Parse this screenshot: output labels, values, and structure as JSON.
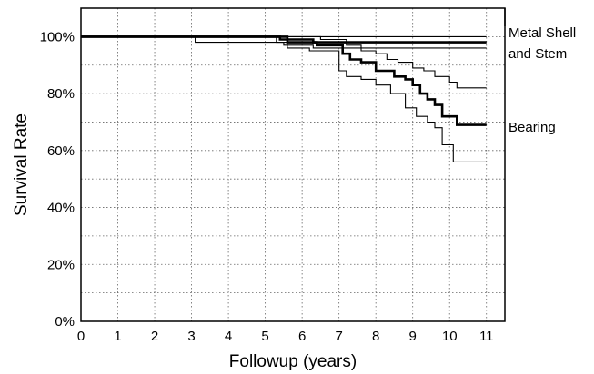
{
  "chart_data": {
    "type": "line",
    "title": "",
    "xlabel": "Followup (years)",
    "ylabel": "Survival Rate",
    "xlim": [
      0,
      11.5
    ],
    "ylim": [
      0,
      110
    ],
    "grid": "dotted",
    "x_ticks": [
      "0",
      "1",
      "2",
      "3",
      "4",
      "5",
      "6",
      "7",
      "8",
      "9",
      "10",
      "11"
    ],
    "y_ticks": [
      {
        "value": 0,
        "label": "0%"
      },
      {
        "value": 20,
        "label": "20%"
      },
      {
        "value": 40,
        "label": "40%"
      },
      {
        "value": 60,
        "label": "60%"
      },
      {
        "value": 80,
        "label": "80%"
      },
      {
        "value": 100,
        "label": "100%"
      }
    ],
    "annotations": [
      "Metal Shell",
      "and Stem",
      "Bearing"
    ],
    "series": [
      {
        "name": "Metal Shell and Stem",
        "role": "estimate",
        "x": [
          0,
          5.6,
          5.6,
          6.3,
          6.3,
          11
        ],
        "y": [
          100,
          100,
          99,
          99,
          98,
          98
        ]
      },
      {
        "role": "upper-ci",
        "x": [
          0,
          11
        ],
        "y": [
          100,
          100
        ]
      },
      {
        "role": "lower-ci",
        "x": [
          0,
          3.1,
          3.1,
          5.5,
          5.5,
          6.3,
          6.3,
          11
        ],
        "y": [
          100,
          100,
          98,
          98,
          97,
          97,
          96,
          96
        ]
      },
      {
        "name": "Bearing",
        "role": "estimate",
        "x": [
          0,
          5.4,
          5.4,
          5.6,
          5.6,
          6.4,
          6.4,
          7.1,
          7.1,
          7.3,
          7.3,
          7.6,
          7.6,
          8.0,
          8.0,
          8.5,
          8.5,
          8.8,
          8.8,
          9.0,
          9.0,
          9.2,
          9.2,
          9.4,
          9.4,
          9.6,
          9.6,
          9.8,
          9.8,
          10.2,
          10.2,
          11
        ],
        "y": [
          100,
          100,
          99,
          99,
          98,
          98,
          97,
          97,
          94,
          94,
          92,
          92,
          91,
          91,
          88,
          88,
          86,
          86,
          85,
          85,
          83,
          83,
          80,
          80,
          78,
          78,
          76,
          76,
          72,
          72,
          69,
          69
        ]
      },
      {
        "role": "upper-ci",
        "x": [
          0,
          5.6,
          5.6,
          6.5,
          6.5,
          7.2,
          7.2,
          7.6,
          7.6,
          8.0,
          8.0,
          8.3,
          8.3,
          8.6,
          8.6,
          9.0,
          9.0,
          9.3,
          9.3,
          9.6,
          9.6,
          10.0,
          10.0,
          10.2,
          10.2,
          11
        ],
        "y": [
          100,
          100,
          100,
          100,
          99,
          99,
          97,
          97,
          95,
          95,
          94,
          94,
          92,
          92,
          91,
          91,
          89,
          89,
          88,
          88,
          86,
          86,
          84,
          84,
          82,
          82
        ]
      },
      {
        "role": "lower-ci",
        "x": [
          0,
          5.3,
          5.3,
          5.6,
          5.6,
          6.2,
          6.2,
          7.0,
          7.0,
          7.2,
          7.2,
          7.6,
          7.6,
          8.0,
          8.0,
          8.4,
          8.4,
          8.8,
          8.8,
          9.1,
          9.1,
          9.4,
          9.4,
          9.6,
          9.6,
          9.8,
          9.8,
          10.1,
          10.1,
          11
        ],
        "y": [
          100,
          100,
          98,
          98,
          96,
          96,
          95,
          95,
          88,
          88,
          86,
          86,
          85,
          85,
          83,
          83,
          80,
          80,
          75,
          75,
          72,
          72,
          70,
          70,
          68,
          68,
          62,
          62,
          56,
          56
        ]
      }
    ]
  }
}
